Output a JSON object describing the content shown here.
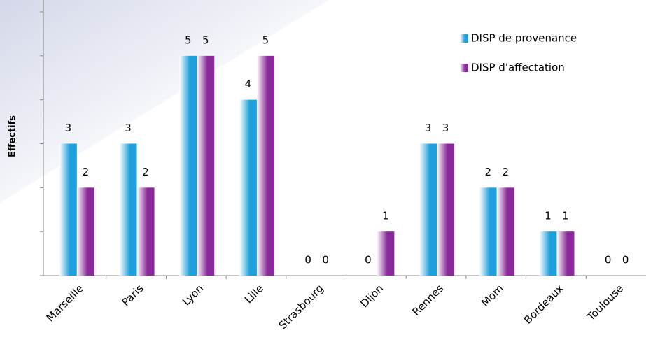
{
  "chart_data": {
    "type": "bar",
    "y_label": "Effectifs",
    "categories": [
      "Marseille",
      "Paris",
      "Lyon",
      "Lille",
      "Strasbourg",
      "Dijon",
      "Rennes",
      "Mom",
      "Bordeaux",
      "Toulouse"
    ],
    "series": [
      {
        "name": "DISP de provenance",
        "color": "#1ea0dc",
        "values": [
          3,
          3,
          5,
          4,
          0,
          0,
          3,
          2,
          1,
          0
        ]
      },
      {
        "name": "DISP d'affectation",
        "color": "#8a2a9a",
        "values": [
          2,
          2,
          5,
          5,
          0,
          1,
          3,
          2,
          1,
          0
        ]
      }
    ],
    "ylim": [
      0,
      6
    ],
    "yticks": [
      0,
      1,
      2,
      3,
      4,
      5,
      6
    ]
  }
}
